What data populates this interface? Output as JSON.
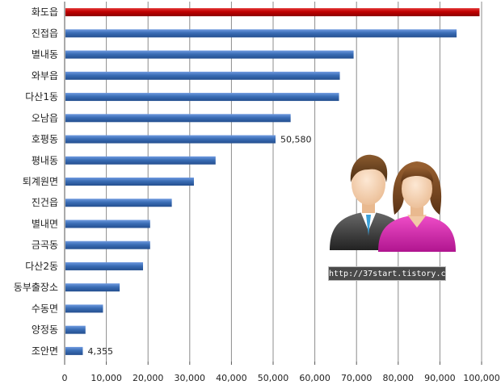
{
  "chart_data": {
    "type": "bar",
    "orientation": "horizontal",
    "categories": [
      "화도읍",
      "진접읍",
      "별내동",
      "와부읍",
      "다산1동",
      "오남읍",
      "호평동",
      "평내동",
      "퇴계원면",
      "진건읍",
      "별내면",
      "금곡동",
      "다산2동",
      "동부출장소",
      "수동면",
      "양정동",
      "조안면"
    ],
    "values": [
      99500,
      94000,
      69300,
      66000,
      65800,
      54200,
      50580,
      36200,
      31000,
      25700,
      20500,
      20500,
      18800,
      13200,
      9200,
      5000,
      4355
    ],
    "data_labels": [
      {
        "category": "호평동",
        "text": "50,580"
      },
      {
        "category": "조안면",
        "text": "4,355"
      }
    ],
    "xlim": [
      0,
      100000
    ],
    "xticks": [
      0,
      10000,
      20000,
      30000,
      40000,
      50000,
      60000,
      70000,
      80000,
      90000,
      100000
    ],
    "xtick_labels": [
      "0",
      "10,000",
      "20,000",
      "30,000",
      "40,000",
      "50,000",
      "60,000",
      "70,000",
      "80,000",
      "90,000",
      "100,000"
    ],
    "highlight_category": "화도읍",
    "colors": {
      "bar": "#3a6db5",
      "highlight": "#c00000",
      "grid": "#8c8c8c"
    },
    "grid": true,
    "title": "",
    "xlabel": "",
    "ylabel": ""
  },
  "watermark": {
    "text": "http://37start.tistory.com"
  },
  "icon": {
    "name": "people-icon"
  }
}
